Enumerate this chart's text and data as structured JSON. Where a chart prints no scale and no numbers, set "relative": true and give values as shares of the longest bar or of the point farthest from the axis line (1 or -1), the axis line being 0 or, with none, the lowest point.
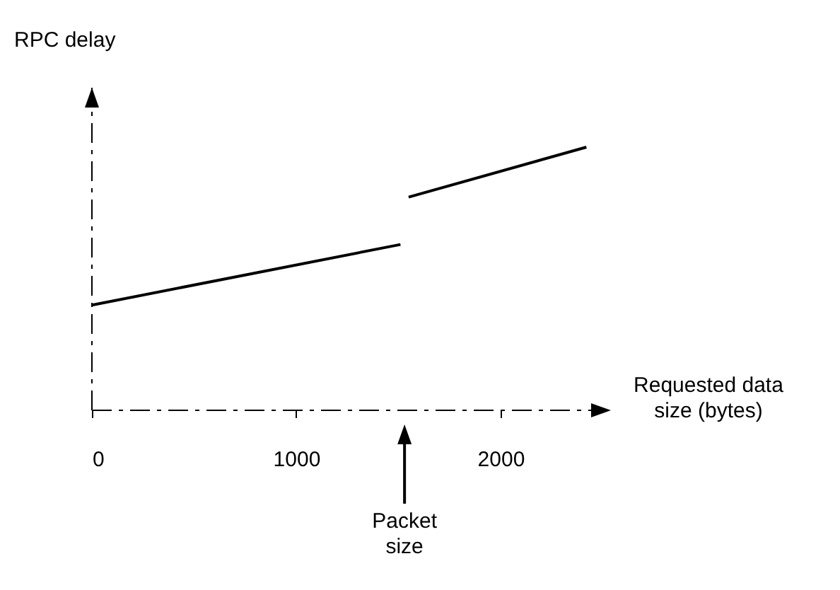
{
  "chart_data": {
    "type": "line",
    "relative": true,
    "xlabel": "Requested data size (bytes)",
    "ylabel": "RPC delay",
    "xlim": [
      0,
      2540
    ],
    "xticks": [
      0,
      1000,
      2000
    ],
    "annotations": [
      "Packet size"
    ],
    "series": [
      {
        "x": [
          0,
          1510
        ],
        "values": [
          0.4,
          0.63
        ],
        "color": "#000000"
      },
      {
        "x": [
          1550,
          2420
        ],
        "values": [
          0.81,
          1
        ],
        "color": "#000000"
      }
    ]
  }
}
